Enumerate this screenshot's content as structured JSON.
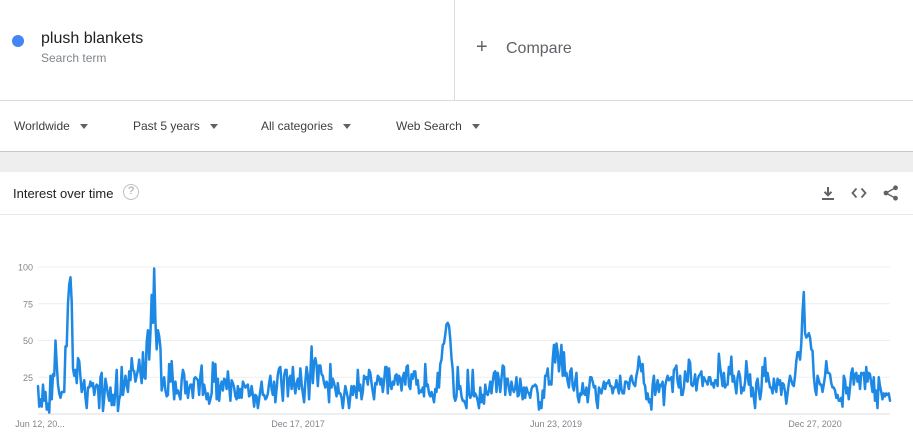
{
  "search_term": {
    "name": "plush blankets",
    "subtitle": "Search term",
    "color": "#4285f4"
  },
  "compare": {
    "plus": "+",
    "label": "Compare"
  },
  "filters": [
    {
      "label": "Worldwide"
    },
    {
      "label": "Past 5 years"
    },
    {
      "label": "All categories"
    },
    {
      "label": "Web Search"
    }
  ],
  "card": {
    "title": "Interest over time",
    "help_icon": "?",
    "icons": [
      "download-icon",
      "embed-code-icon",
      "share-icon"
    ]
  },
  "chart_data": {
    "type": "line",
    "title": "",
    "xlabel": "",
    "ylabel": "",
    "ylim": [
      0,
      100
    ],
    "yticks": [
      "100",
      "75",
      "50",
      "25"
    ],
    "xtick_labels": [
      "Jun 12, 20...",
      "Dec 17, 2017",
      "Jun 23, 2019",
      "Dec 27, 2020"
    ],
    "grid": true,
    "series": [
      {
        "color": "#1e88e5",
        "values": [
          19,
          5,
          10,
          5,
          20,
          9,
          15,
          3,
          7,
          1,
          26,
          10,
          27,
          26,
          50,
          34,
          20,
          14,
          11,
          15,
          15,
          15,
          46,
          46,
          75,
          88,
          93,
          76,
          31,
          26,
          30,
          21,
          38,
          36,
          25,
          15,
          19,
          23,
          11,
          4,
          18,
          18,
          22,
          19,
          21,
          13,
          18,
          20,
          19,
          4,
          25,
          28,
          2,
          11,
          24,
          19,
          13,
          9,
          18,
          6,
          13,
          6,
          16,
          30,
          2,
          10,
          13,
          32,
          13,
          19,
          26,
          20,
          15,
          29,
          23,
          38,
          30,
          29,
          22,
          26,
          30,
          37,
          28,
          21,
          42,
          25,
          24,
          49,
          57,
          37,
          55,
          81,
          62,
          99,
          63,
          44,
          57,
          53,
          45,
          16,
          21,
          25,
          16,
          12,
          13,
          34,
          22,
          36,
          22,
          10,
          22,
          14,
          16,
          13,
          10,
          23,
          30,
          27,
          14,
          22,
          11,
          17,
          20,
          20,
          11,
          24,
          25,
          24,
          23,
          13,
          26,
          33,
          13,
          20,
          15,
          10,
          14,
          7,
          10,
          14,
          35,
          22,
          34,
          10,
          24,
          9,
          18,
          22,
          16,
          24,
          23,
          17,
          29,
          19,
          9,
          23,
          21,
          18,
          12,
          10,
          19,
          11,
          17,
          11,
          22,
          20,
          18,
          19,
          20,
          12,
          13,
          19,
          13,
          5,
          13,
          12,
          4,
          10,
          16,
          22,
          13,
          13,
          10,
          11,
          14,
          21,
          26,
          17,
          13,
          22,
          8,
          17,
          27,
          31,
          32,
          19,
          9,
          26,
          30,
          30,
          12,
          24,
          26,
          17,
          32,
          20,
          14,
          21,
          24,
          17,
          31,
          21,
          14,
          8,
          22,
          32,
          26,
          10,
          27,
          46,
          21,
          35,
          38,
          33,
          19,
          33,
          33,
          27,
          26,
          21,
          18,
          22,
          20,
          8,
          34,
          18,
          24,
          21,
          17,
          12,
          21,
          14,
          14,
          11,
          4,
          12,
          19,
          15,
          11,
          4,
          12,
          19,
          13,
          19,
          17,
          11,
          30,
          16,
          20,
          10,
          15,
          26,
          24,
          25,
          20,
          30,
          28,
          21,
          15,
          10,
          21,
          20,
          26,
          25,
          20,
          24,
          15,
          22,
          32,
          32,
          14,
          31,
          20,
          17,
          22,
          20,
          26,
          27,
          20,
          26,
          24,
          16,
          25,
          28,
          20,
          32,
          33,
          19,
          17,
          27,
          24,
          29,
          29,
          20,
          23,
          14,
          16,
          15,
          18,
          12,
          34,
          19,
          20,
          14,
          12,
          15,
          12,
          8,
          17,
          15,
          28,
          18,
          34,
          37,
          47,
          48,
          54,
          61,
          62,
          60,
          51,
          38,
          30,
          12,
          9,
          12,
          32,
          17,
          19,
          12,
          9,
          9,
          7,
          4,
          30,
          14,
          11,
          13,
          30,
          12,
          14,
          12,
          9,
          4,
          18,
          8,
          13,
          7,
          20,
          14,
          13,
          16,
          22,
          14,
          22,
          28,
          29,
          15,
          28,
          23,
          15,
          24,
          33,
          32,
          13,
          24,
          24,
          17,
          13,
          22,
          17,
          15,
          18,
          25,
          12,
          13,
          24,
          17,
          10,
          18,
          11,
          18,
          15,
          14,
          11,
          17,
          19,
          19,
          20,
          19,
          14,
          3,
          8,
          4,
          16,
          11,
          26,
          26,
          31,
          20,
          22,
          20,
          37,
          47,
          35,
          48,
          42,
          29,
          37,
          47,
          26,
          42,
          26,
          28,
          22,
          18,
          29,
          31,
          19,
          16,
          22,
          28,
          12,
          8,
          14,
          13,
          21,
          14,
          13,
          18,
          8,
          16,
          25,
          25,
          22,
          18,
          19,
          9,
          4,
          18,
          16,
          14,
          18,
          22,
          17,
          21,
          21,
          23,
          19,
          19,
          14,
          18,
          18,
          23,
          18,
          14,
          26,
          17,
          14,
          14,
          22,
          22,
          21,
          17,
          24,
          26,
          22,
          20,
          19,
          26,
          30,
          39,
          34,
          29,
          34,
          21,
          19,
          10,
          14,
          8,
          10,
          3,
          20,
          26,
          13,
          18,
          23,
          15,
          20,
          19,
          22,
          6,
          19,
          23,
          26,
          23,
          24,
          25,
          15,
          30,
          31,
          33,
          22,
          18,
          26,
          13,
          13,
          18,
          29,
          23,
          22,
          37,
          35,
          20,
          19,
          21,
          27,
          16,
          23,
          26,
          27,
          29,
          19,
          25,
          23,
          22,
          20,
          25,
          25,
          20,
          21,
          18,
          23,
          23,
          19,
          41,
          32,
          26,
          19,
          28,
          18,
          20,
          20,
          32,
          27,
          39,
          22,
          26,
          20,
          14,
          25,
          29,
          25,
          14,
          18,
          16,
          22,
          36,
          26,
          20,
          27,
          12,
          18,
          11,
          4,
          21,
          24,
          16,
          10,
          16,
          32,
          26,
          38,
          22,
          28,
          23,
          18,
          18,
          14,
          24,
          18,
          15,
          24,
          20,
          23,
          13,
          21,
          20,
          15,
          7,
          14,
          21,
          26,
          23,
          20,
          19,
          26,
          36,
          42,
          42,
          37,
          48,
          70,
          83,
          55,
          52,
          53,
          55,
          52,
          44,
          43,
          26,
          17,
          13,
          26,
          23,
          20,
          20,
          15,
          20,
          26,
          36,
          28,
          28,
          27,
          21,
          18,
          18,
          16,
          11,
          13,
          9,
          9,
          11,
          5,
          26,
          23,
          14,
          18,
          10,
          18,
          28,
          31,
          20,
          27,
          28,
          22,
          26,
          17,
          28,
          27,
          28,
          17,
          32,
          22,
          28,
          27,
          21,
          15,
          25,
          9,
          16,
          4,
          25,
          19,
          15,
          10,
          14,
          12,
          14,
          13,
          14,
          9
        ]
      }
    ]
  }
}
